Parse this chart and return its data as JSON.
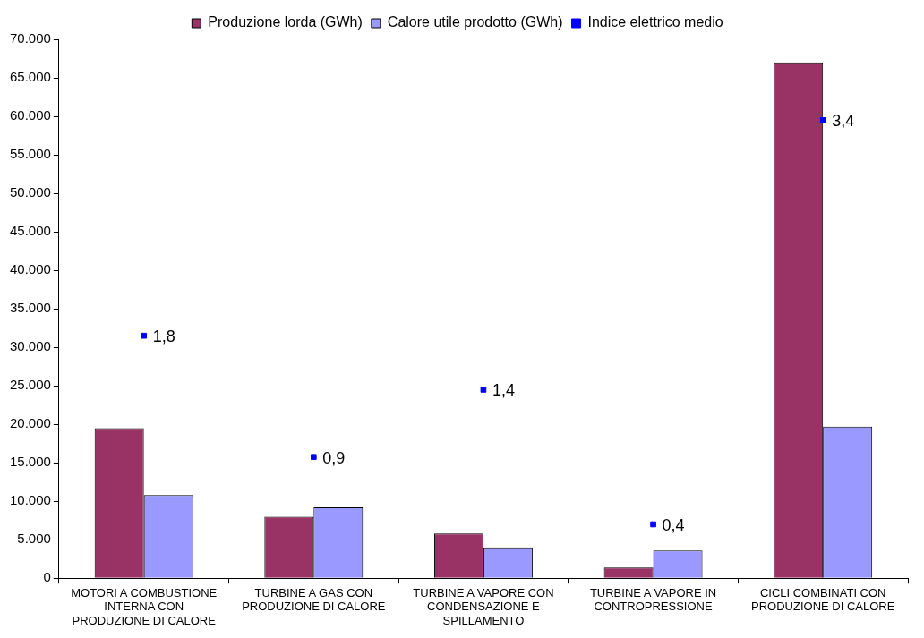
{
  "chart_data": {
    "type": "bar",
    "categories": [
      "MOTORI A COMBUSTIONE INTERNA CON PRODUZIONE DI CALORE",
      "TURBINE A GAS CON PRODUZIONE DI CALORE",
      "TURBINE A VAPORE CON CONDENSAZIONE E SPILLAMENTO",
      "TURBINE A VAPORE IN CONTROPRESSIONE",
      "CICLI COMBINATI CON PRODUZIONE DI CALORE"
    ],
    "series": [
      {
        "name": "Produzione lorda (GWh)",
        "color": "#993366",
        "values": [
          19500,
          8000,
          5800,
          1400,
          67000
        ]
      },
      {
        "name": "Calore utile prodotto (GWh)",
        "color": "#9999ff",
        "values": [
          10800,
          9200,
          4000,
          3600,
          19700
        ]
      },
      {
        "name": "Indice elettrico medio",
        "type": "scatter",
        "axis": "y2",
        "color": "#0000ff",
        "marker": "square",
        "values": [
          1.8,
          0.9,
          1.4,
          0.4,
          3.4
        ],
        "value_labels": [
          "1,8",
          "0,9",
          "1,4",
          "0,4",
          "3,4"
        ]
      }
    ],
    "ylim": [
      0,
      70000
    ],
    "yticks": [
      {
        "value": 0,
        "label": "0"
      },
      {
        "value": 5000,
        "label": "5.000"
      },
      {
        "value": 10000,
        "label": "10.000"
      },
      {
        "value": 15000,
        "label": "15.000"
      },
      {
        "value": 20000,
        "label": "20.000"
      },
      {
        "value": 25000,
        "label": "25.000"
      },
      {
        "value": 30000,
        "label": "30.000"
      },
      {
        "value": 35000,
        "label": "35.000"
      },
      {
        "value": 40000,
        "label": "40.000"
      },
      {
        "value": 45000,
        "label": "45.000"
      },
      {
        "value": 50000,
        "label": "50.000"
      },
      {
        "value": 55000,
        "label": "55.000"
      },
      {
        "value": 60000,
        "label": "60.000"
      },
      {
        "value": 65000,
        "label": "65.000"
      },
      {
        "value": 70000,
        "label": "70.000"
      }
    ],
    "y2lim": [
      0,
      4
    ],
    "legend": "top",
    "grid": false
  }
}
